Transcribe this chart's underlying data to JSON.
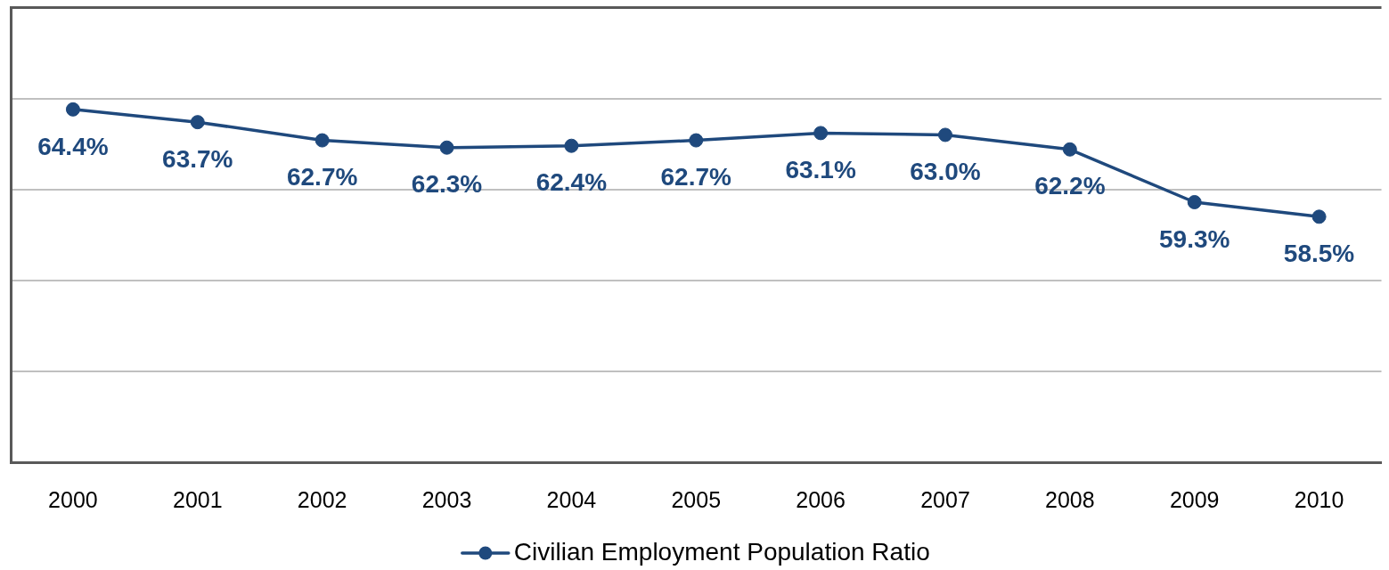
{
  "chart_data": {
    "type": "line",
    "categories": [
      "2000",
      "2001",
      "2002",
      "2003",
      "2004",
      "2005",
      "2006",
      "2007",
      "2008",
      "2009",
      "2010"
    ],
    "series": [
      {
        "name": "Civilian Employment Population Ratio",
        "color": "#1f497d",
        "values": [
          64.4,
          63.7,
          62.7,
          62.3,
          62.4,
          62.7,
          63.1,
          63.0,
          62.2,
          59.3,
          58.5
        ],
        "value_labels": [
          "64.4%",
          "63.7%",
          "62.7%",
          "62.3%",
          "62.4%",
          "62.7%",
          "63.1%",
          "63.0%",
          "62.2%",
          "59.3%",
          "58.5%"
        ]
      }
    ],
    "ylim": [
      45,
      70
    ],
    "yticks": [
      45,
      50,
      55,
      60,
      65,
      70
    ],
    "tick_labels": "x",
    "grid": "y",
    "legend": "bottom",
    "marker": "circle",
    "line_style": "solid"
  }
}
